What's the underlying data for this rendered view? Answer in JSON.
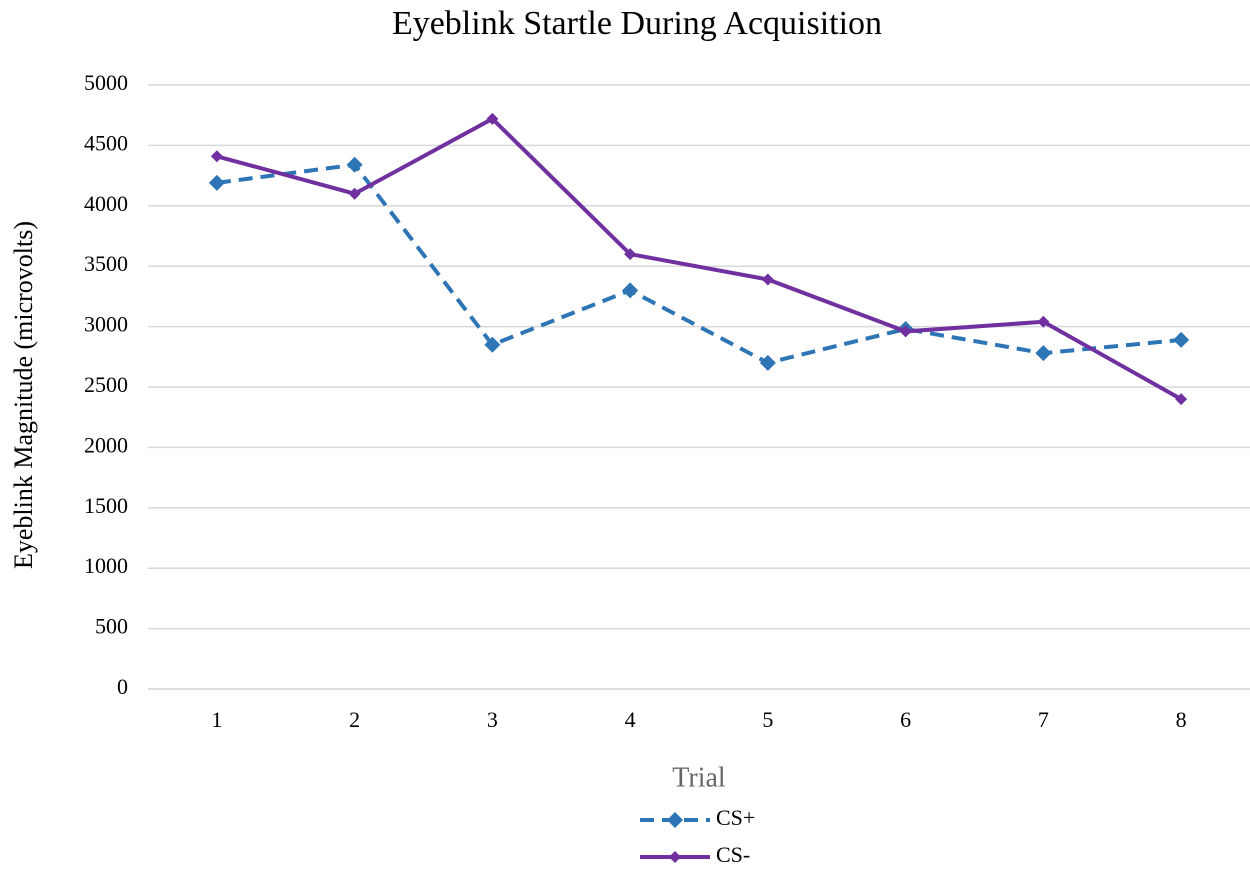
{
  "chart_data": {
    "type": "line",
    "title": "Eyeblink Startle During Acquisition",
    "x_label": "Trial",
    "y_label": "Eyeblink Magnitude (microvolts)",
    "categories": [
      "1",
      "2",
      "3",
      "4",
      "5",
      "6",
      "7",
      "8"
    ],
    "series": [
      {
        "name": "CS+",
        "color": "#2e75b6",
        "dashed": true,
        "values": [
          4190,
          4340,
          2850,
          3300,
          2700,
          2980,
          2780,
          2890
        ]
      },
      {
        "name": "CS-",
        "color": "#7030a0",
        "dashed": false,
        "values": [
          4410,
          4100,
          4720,
          3600,
          3390,
          2960,
          3040,
          2400
        ]
      }
    ],
    "ylim": [
      0,
      5000
    ],
    "yticks": [
      0,
      500,
      1000,
      1500,
      2000,
      2500,
      3000,
      3500,
      4000,
      4500,
      5000
    ],
    "grid": true,
    "legend": "bottom"
  }
}
